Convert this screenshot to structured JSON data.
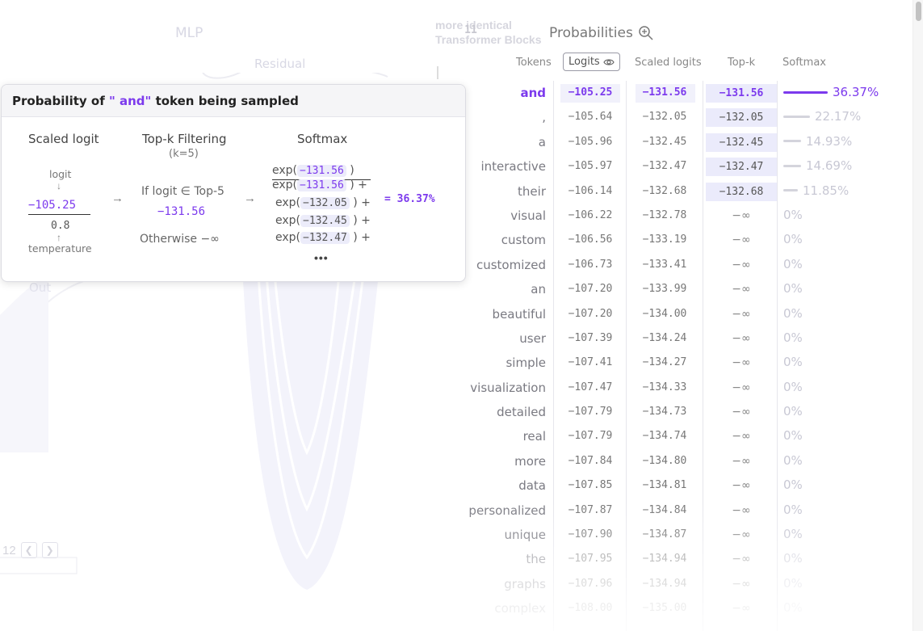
{
  "background": {
    "mlp_label": "MLP",
    "residual_label": "Residual",
    "out_label": "Out",
    "blocks_count": "11",
    "blocks_text": " more identical Transformer Blocks",
    "page_number": "12"
  },
  "probabilities": {
    "title": "Probabilities",
    "headers": {
      "tokens": "Tokens",
      "logits": "Logits",
      "scaled_logits": "Scaled logits",
      "top_k": "Top-k",
      "softmax": "Softmax"
    },
    "rows": [
      {
        "token": "and",
        "logit": "−105.25",
        "scaled": "−131.56",
        "topk": "−131.56",
        "softmax": "36.37%",
        "p": 0.3637
      },
      {
        "token": ",",
        "logit": "−105.64",
        "scaled": "−132.05",
        "topk": "−132.05",
        "softmax": "22.17%",
        "p": 0.2217
      },
      {
        "token": "a",
        "logit": "−105.96",
        "scaled": "−132.45",
        "topk": "−132.45",
        "softmax": "14.93%",
        "p": 0.1493
      },
      {
        "token": "interactive",
        "logit": "−105.97",
        "scaled": "−132.47",
        "topk": "−132.47",
        "softmax": "14.69%",
        "p": 0.1469
      },
      {
        "token": "their",
        "logit": "−106.14",
        "scaled": "−132.68",
        "topk": "−132.68",
        "softmax": "11.85%",
        "p": 0.1185
      },
      {
        "token": "visual",
        "logit": "−106.22",
        "scaled": "−132.78",
        "topk": "−∞",
        "softmax": "0%",
        "p": 0
      },
      {
        "token": "custom",
        "logit": "−106.56",
        "scaled": "−133.19",
        "topk": "−∞",
        "softmax": "0%",
        "p": 0
      },
      {
        "token": "customized",
        "logit": "−106.73",
        "scaled": "−133.41",
        "topk": "−∞",
        "softmax": "0%",
        "p": 0
      },
      {
        "token": "an",
        "logit": "−107.20",
        "scaled": "−133.99",
        "topk": "−∞",
        "softmax": "0%",
        "p": 0
      },
      {
        "token": "beautiful",
        "logit": "−107.20",
        "scaled": "−134.00",
        "topk": "−∞",
        "softmax": "0%",
        "p": 0
      },
      {
        "token": "user",
        "logit": "−107.39",
        "scaled": "−134.24",
        "topk": "−∞",
        "softmax": "0%",
        "p": 0
      },
      {
        "token": "simple",
        "logit": "−107.41",
        "scaled": "−134.27",
        "topk": "−∞",
        "softmax": "0%",
        "p": 0
      },
      {
        "token": "visualization",
        "logit": "−107.47",
        "scaled": "−134.33",
        "topk": "−∞",
        "softmax": "0%",
        "p": 0
      },
      {
        "token": "detailed",
        "logit": "−107.79",
        "scaled": "−134.73",
        "topk": "−∞",
        "softmax": "0%",
        "p": 0
      },
      {
        "token": "real",
        "logit": "−107.79",
        "scaled": "−134.74",
        "topk": "−∞",
        "softmax": "0%",
        "p": 0
      },
      {
        "token": "more",
        "logit": "−107.84",
        "scaled": "−134.80",
        "topk": "−∞",
        "softmax": "0%",
        "p": 0
      },
      {
        "token": "data",
        "logit": "−107.85",
        "scaled": "−134.81",
        "topk": "−∞",
        "softmax": "0%",
        "p": 0
      },
      {
        "token": "personalized",
        "logit": "−107.87",
        "scaled": "−134.84",
        "topk": "−∞",
        "softmax": "0%",
        "p": 0
      },
      {
        "token": "unique",
        "logit": "−107.90",
        "scaled": "−134.87",
        "topk": "−∞",
        "softmax": "0%",
        "p": 0
      },
      {
        "token": "the",
        "logit": "−107.95",
        "scaled": "−134.94",
        "topk": "−∞",
        "softmax": "0%",
        "p": 0
      },
      {
        "token": "graphs",
        "logit": "−107.96",
        "scaled": "−134.94",
        "topk": "−∞",
        "softmax": "0%",
        "p": 0
      },
      {
        "token": "complex",
        "logit": "−108.00",
        "scaled": "−135.00",
        "topk": "−∞",
        "softmax": "0%",
        "p": 0
      }
    ]
  },
  "card": {
    "title_prefix": "Probability of ",
    "title_token": "\" and\"",
    "title_suffix": " token being sampled",
    "scaled_logit_title": "Scaled logit",
    "logit_label": "logit",
    "logit_value": "−105.25",
    "temperature_value": "0.8",
    "temperature_label": "temperature",
    "topk_title": "Top-k Filtering",
    "topk_sub": "(k=5)",
    "if_text": "If logit ∈ Top-5",
    "if_value": "−131.56",
    "otherwise_text": "Otherwise ",
    "otherwise_value": "−∞",
    "softmax_title": "Softmax",
    "exp_prefix": "exp(",
    "exp_suffix": " )",
    "exp_plus": " ) +",
    "numerator_value": "−131.56",
    "denominator_values": [
      "−131.56",
      "−13​2.05",
      "−132.45",
      "−132.47"
    ],
    "dots": "•••",
    "result": "= 36.37%"
  },
  "colors": {
    "accent": "#7c3aed",
    "highlight": "#ebebfb",
    "muted_text": "#777777"
  }
}
